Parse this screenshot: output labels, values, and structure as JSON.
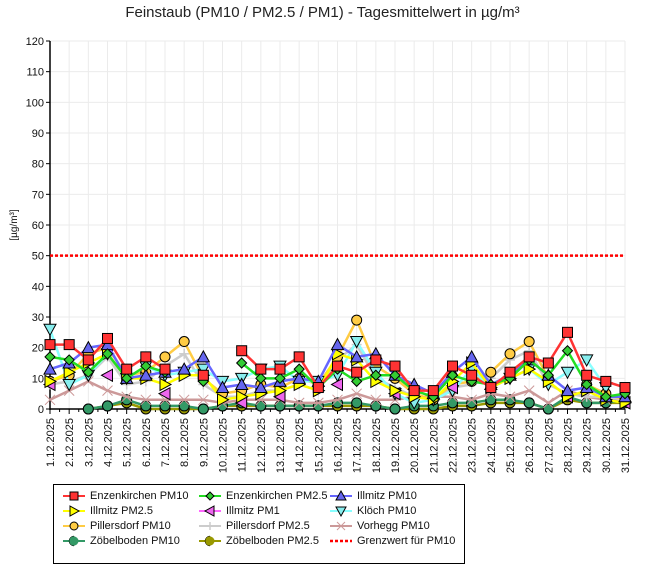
{
  "chart_data": {
    "type": "line",
    "title": "Feinstaub (PM10 / PM2.5 / PM1) -  Tagesmittelwert in µg/m³",
    "xlabel": "",
    "ylabel": "[µg/m³]",
    "ylim": [
      0,
      120
    ],
    "yticks": [
      0,
      10,
      20,
      30,
      40,
      50,
      60,
      70,
      80,
      90,
      100,
      110,
      120
    ],
    "grid": true,
    "legend_position": "bottom",
    "x": [
      "1.12.2025",
      "2.12.2025",
      "3.12.2025",
      "4.12.2025",
      "5.12.2025",
      "6.12.2025",
      "7.12.2025",
      "8.12.2025",
      "9.12.2025",
      "10.12.2025",
      "11.12.2025",
      "12.12.2025",
      "13.12.2025",
      "14.12.2025",
      "15.12.2025",
      "16.12.2025",
      "17.12.2025",
      "18.12.2025",
      "19.12.2025",
      "20.12.2025",
      "21.12.2025",
      "22.12.2025",
      "23.12.2025",
      "24.12.2025",
      "25.12.2025",
      "26.12.2025",
      "27.12.2025",
      "28.12.2025",
      "29.12.2025",
      "30.12.2025",
      "31.12.2025"
    ],
    "series": [
      {
        "name": "Enzenkirchen PM10",
        "color": "#ff3333",
        "marker": "square",
        "fill": "#ff3333",
        "values": [
          21,
          21,
          16,
          23,
          13,
          17,
          13,
          null,
          11,
          null,
          19,
          13,
          13,
          17,
          7,
          14,
          12,
          16,
          14,
          6,
          6,
          14,
          11,
          7,
          12,
          17,
          15,
          25,
          11,
          9,
          7
        ]
      },
      {
        "name": "Enzenkirchen PM2.5",
        "color": "#22dd22",
        "marker": "diamond",
        "fill": "#33cc33",
        "values": [
          17,
          16,
          12,
          18,
          10,
          14,
          12,
          null,
          9,
          null,
          15,
          10,
          10,
          13,
          7,
          13,
          9,
          11,
          11,
          6,
          4,
          11,
          9,
          8,
          10,
          16,
          11,
          19,
          8,
          4,
          5
        ]
      },
      {
        "name": "Illmitz PM10",
        "color": "#6666ff",
        "marker": "triangle-up",
        "fill": "#6666ee",
        "values": [
          13,
          15,
          20,
          21,
          10,
          11,
          12,
          13,
          17,
          7,
          8,
          7,
          9,
          10,
          9,
          21,
          17,
          18,
          11,
          8,
          5,
          12,
          17,
          8,
          11,
          16,
          11,
          6,
          7,
          4,
          4
        ]
      },
      {
        "name": "Illmitz PM2.5",
        "color": "#ffff00",
        "marker": "triangle-right",
        "fill": "#ffff00",
        "values": [
          9,
          12,
          15,
          18,
          10,
          10,
          8,
          11,
          11,
          3,
          4,
          5,
          6,
          8,
          6,
          18,
          16,
          9,
          6,
          4,
          3,
          9,
          15,
          7,
          10,
          13,
          9,
          4,
          6,
          3,
          2
        ]
      },
      {
        "name": "Illmitz PM1",
        "color": "#ff66ff",
        "marker": "triangle-left",
        "fill": "#ee66ee",
        "values": [
          8,
          null,
          null,
          11,
          null,
          null,
          5,
          null,
          null,
          null,
          2,
          null,
          4,
          null,
          null,
          8,
          null,
          null,
          5,
          null,
          null,
          7,
          null,
          null,
          null,
          null,
          null,
          4,
          null,
          null,
          2
        ]
      },
      {
        "name": "Klöch PM10",
        "color": "#88ffff",
        "marker": "triangle-down",
        "fill": "#88eeee",
        "values": [
          26,
          8,
          11,
          18,
          10,
          14,
          11,
          12,
          13,
          9,
          10,
          13,
          14,
          9,
          9,
          11,
          22,
          12,
          5,
          2,
          3,
          6,
          13,
          7,
          10,
          13,
          8,
          12,
          16,
          7,
          null
        ]
      },
      {
        "name": "Pillersdorf PM10",
        "color": "#ffcc44",
        "marker": "circle",
        "fill": "#ffcc44",
        "values": [
          9,
          11,
          18,
          20,
          11,
          12,
          17,
          22,
          10,
          5,
          6,
          8,
          7,
          10,
          8,
          17,
          29,
          14,
          10,
          5,
          3,
          8,
          9,
          12,
          18,
          22,
          10,
          null,
          8,
          5,
          3
        ]
      },
      {
        "name": "Pillersdorf PM2.5",
        "color": "#cccccc",
        "marker": "plus",
        "fill": "#cccccc",
        "values": [
          8,
          9,
          11,
          17,
          8,
          9,
          14,
          18,
          8,
          4,
          4,
          6,
          6,
          8,
          6,
          16,
          21,
          10,
          7,
          4,
          3,
          7,
          8,
          10,
          16,
          19,
          8,
          5,
          4,
          4,
          3
        ]
      },
      {
        "name": "Vorhegg PM10",
        "color": "#cc9999",
        "marker": "x",
        "fill": "#cc9999",
        "values": [
          3,
          6,
          9,
          6,
          4,
          3,
          3,
          3,
          3,
          2,
          3,
          3,
          3,
          2,
          2,
          3,
          5,
          3,
          3,
          4,
          4,
          4,
          3,
          5,
          4,
          6,
          2,
          6,
          4,
          3,
          3
        ]
      },
      {
        "name": "Zöbelboden PM10",
        "color": "#339966",
        "marker": "circle",
        "fill": "#339966",
        "values": [
          null,
          null,
          0,
          1,
          3,
          1,
          1,
          1,
          0,
          1,
          2,
          1,
          1,
          1,
          1,
          2,
          2,
          1,
          0,
          1,
          1,
          2,
          2,
          3,
          3,
          2,
          0,
          4,
          2,
          2,
          3
        ]
      },
      {
        "name": "Zöbelboden PM2.5",
        "color": "#999900",
        "marker": "circle",
        "fill": "#999900",
        "values": [
          null,
          null,
          0,
          1,
          2,
          0,
          0,
          0,
          0,
          1,
          1,
          1,
          1,
          1,
          1,
          1,
          1,
          1,
          0,
          0,
          0,
          1,
          1,
          2,
          2,
          2,
          0,
          3,
          2,
          2,
          2
        ]
      }
    ],
    "reference_lines": [
      {
        "name": "Grenzwert für PM10",
        "value": 50,
        "color": "#ff0000",
        "style": "dotted"
      }
    ]
  }
}
